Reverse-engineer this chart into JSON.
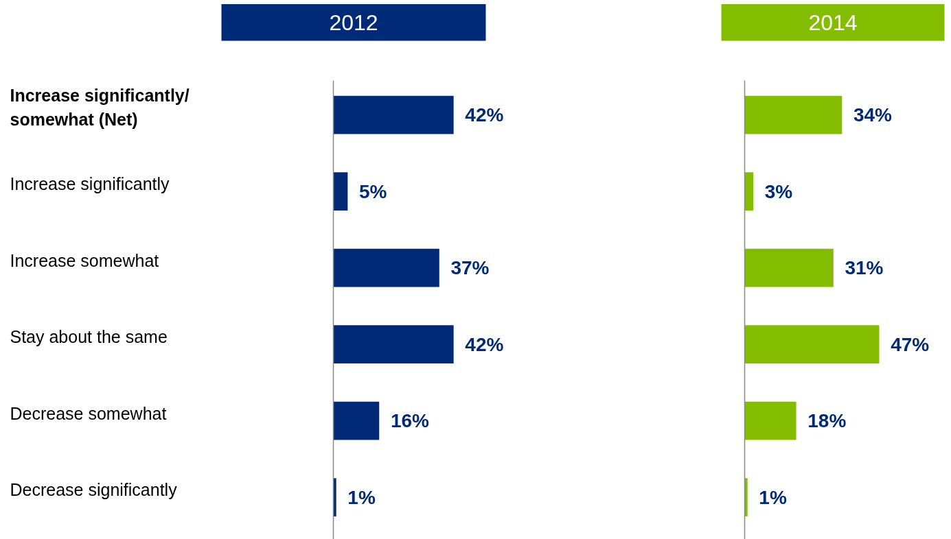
{
  "chart_data": [
    {
      "type": "bar",
      "orientation": "horizontal",
      "title": "2012",
      "tick_labels": "y",
      "categories": [
        "Increase significantly/ somewhat (Net)",
        "Increase significantly",
        "Increase somewhat",
        "Stay about the same",
        "Decrease somewhat",
        "Decrease significantly"
      ],
      "series": [
        {
          "color": "#002a77",
          "values": [
            42,
            5,
            37,
            42,
            16,
            1
          ],
          "value_labels": [
            "42%",
            "5%",
            "37%",
            "42%",
            "16%",
            "1%"
          ]
        }
      ]
    },
    {
      "type": "bar",
      "orientation": "horizontal",
      "title": "2014",
      "tick_labels": false,
      "categories": [
        null,
        null,
        null,
        null,
        null,
        null
      ],
      "series": [
        {
          "color": "#84bd00",
          "values": [
            34,
            3,
            31,
            47,
            18,
            1
          ],
          "value_labels": [
            "34%",
            "3%",
            "31%",
            "47%",
            "18%",
            "1%"
          ]
        }
      ]
    }
  ]
}
